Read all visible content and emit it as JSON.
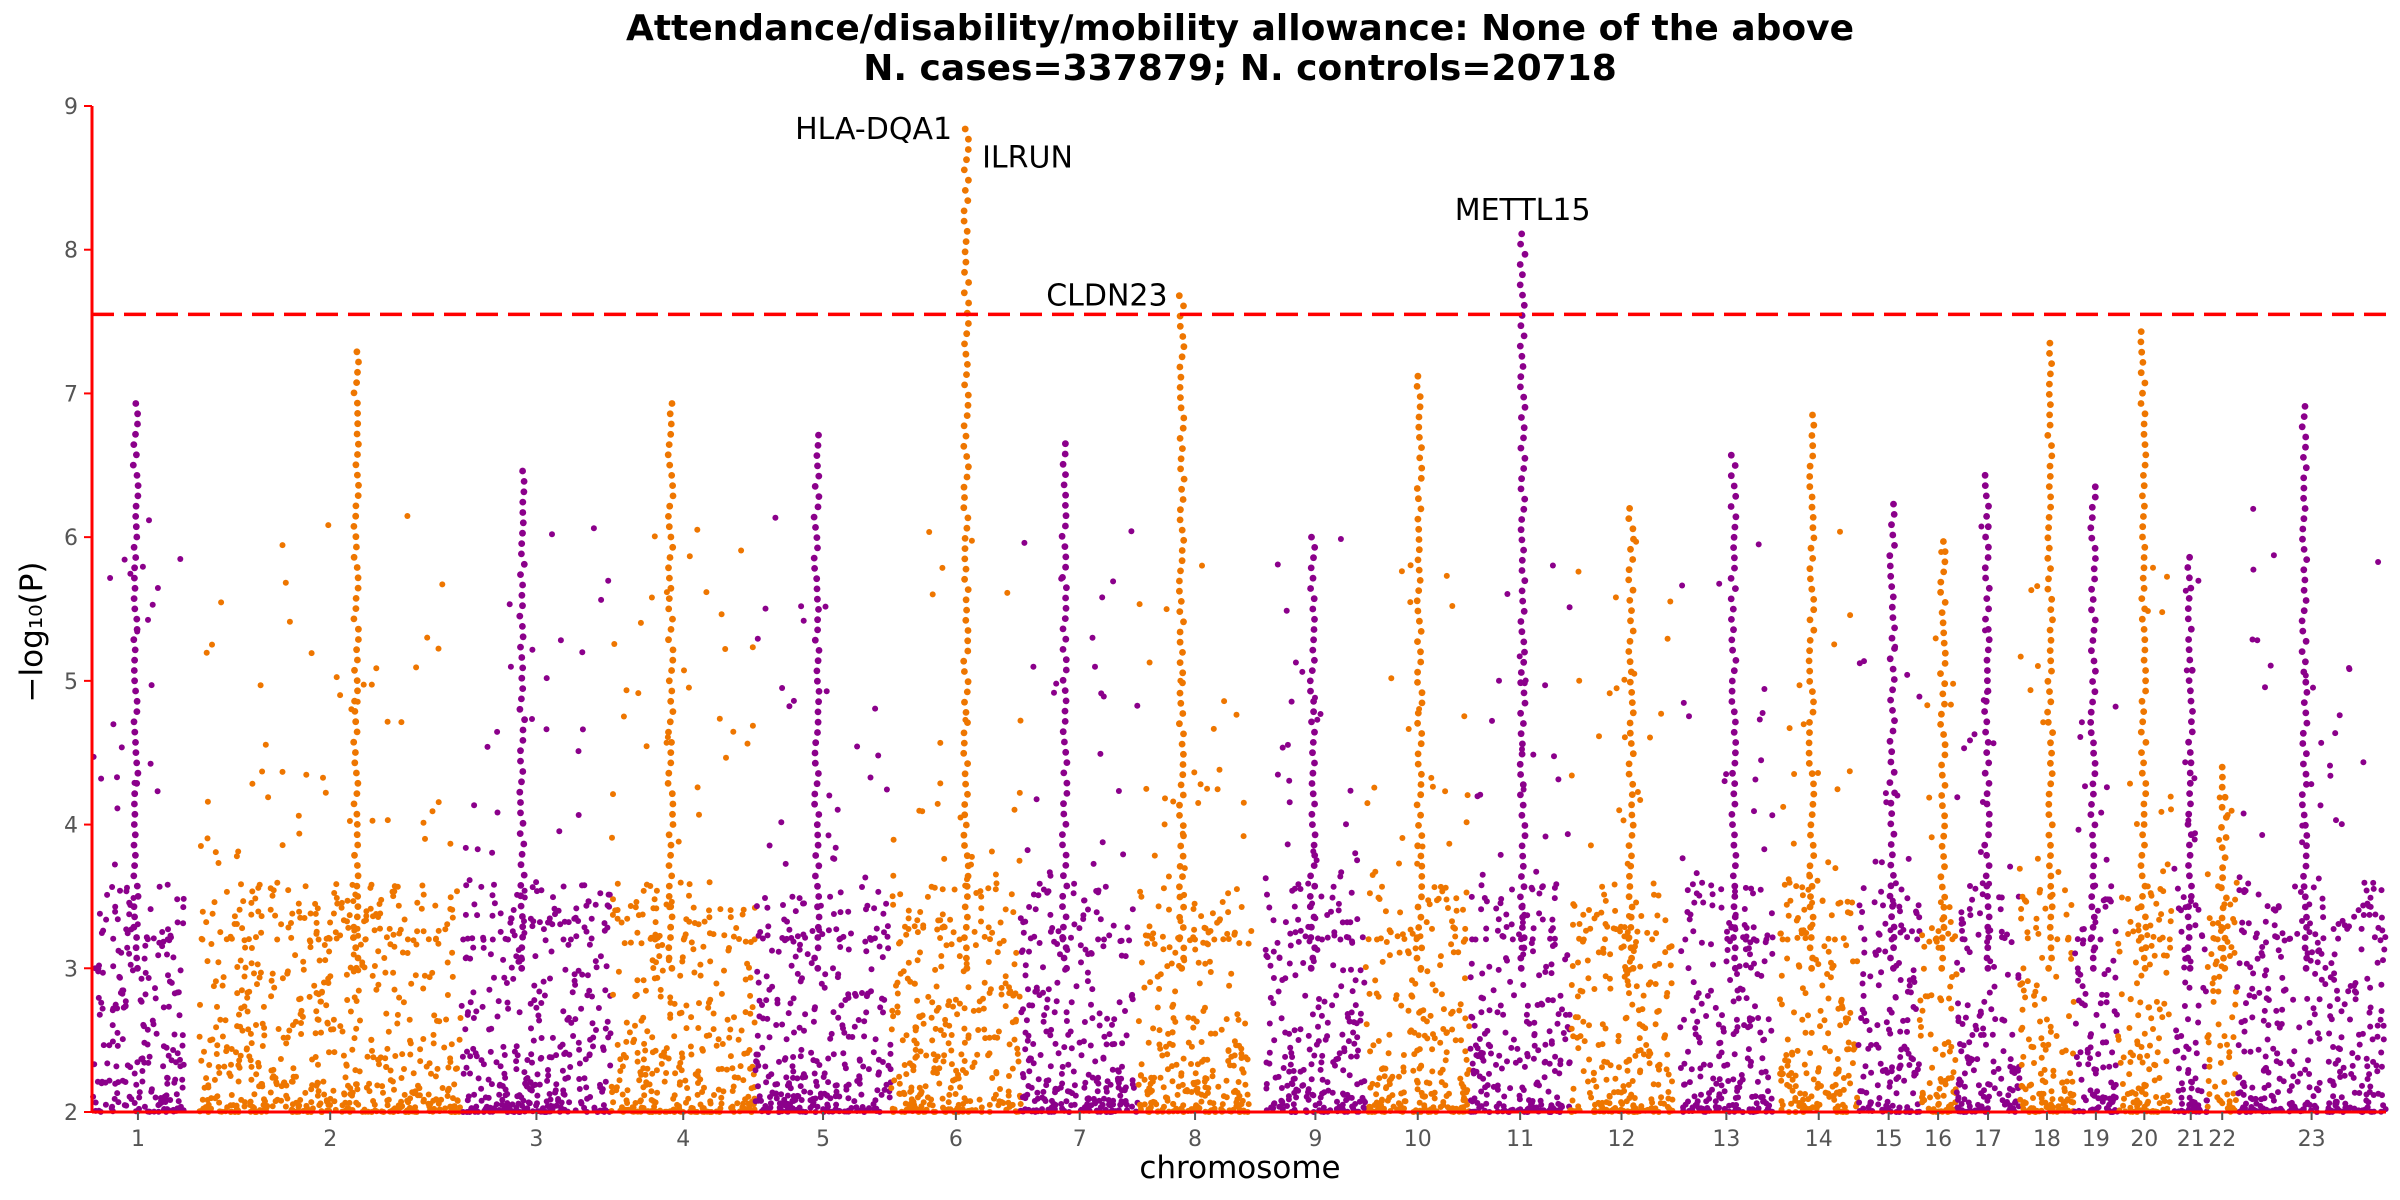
{
  "chart_data": {
    "type": "scatter",
    "subtype": "manhattan",
    "title_line1": "Attendance/disability/mobility allowance: None of the above",
    "title_line2": "N. cases=337879; N. controls=20718",
    "xlabel": "chromosome",
    "ylabel": "−log₁₀(P)",
    "ylim": [
      2,
      9
    ],
    "yticks": [
      2,
      3,
      4,
      5,
      6,
      7,
      8,
      9
    ],
    "significance_threshold": 7.55,
    "colors": {
      "odd": "#8B008B",
      "even": "#EE7600",
      "threshold": "#FF0000",
      "axis": "#FF0000"
    },
    "chromosomes": [
      {
        "label": "1",
        "start": 0,
        "end": 92,
        "peak": 6.93
      },
      {
        "label": "2",
        "start": 107,
        "end": 370,
        "peak": 7.29
      },
      {
        "label": "3",
        "start": 370,
        "end": 520,
        "peak": 6.46
      },
      {
        "label": "4",
        "start": 520,
        "end": 664,
        "peak": 6.93
      },
      {
        "label": "5",
        "start": 664,
        "end": 800,
        "peak": 6.71
      },
      {
        "label": "6",
        "start": 800,
        "end": 930,
        "peak": 8.84
      },
      {
        "label": "7",
        "start": 930,
        "end": 1048,
        "peak": 6.65
      },
      {
        "label": "8",
        "start": 1048,
        "end": 1161,
        "peak": 7.68
      },
      {
        "label": "9",
        "start": 1175,
        "end": 1275,
        "peak": 6.0
      },
      {
        "label": "10",
        "start": 1275,
        "end": 1380,
        "peak": 7.12
      },
      {
        "label": "11",
        "start": 1380,
        "end": 1480,
        "peak": 8.11
      },
      {
        "label": "12",
        "start": 1480,
        "end": 1583,
        "peak": 6.2
      },
      {
        "label": "13",
        "start": 1590,
        "end": 1683,
        "peak": 6.57
      },
      {
        "label": "14",
        "start": 1690,
        "end": 1768,
        "peak": 6.85
      },
      {
        "label": "15",
        "start": 1768,
        "end": 1830,
        "peak": 6.23
      },
      {
        "label": "16",
        "start": 1830,
        "end": 1867,
        "peak": 5.97
      },
      {
        "label": "17",
        "start": 1867,
        "end": 1930,
        "peak": 6.43
      },
      {
        "label": "18",
        "start": 1930,
        "end": 1985,
        "peak": 7.35
      },
      {
        "label": "19",
        "start": 1985,
        "end": 2028,
        "peak": 6.35
      },
      {
        "label": "20",
        "start": 2028,
        "end": 2082,
        "peak": 7.43
      },
      {
        "label": "21",
        "start": 2085,
        "end": 2118,
        "peak": 5.86
      },
      {
        "label": "22",
        "start": 2118,
        "end": 2148,
        "peak": 4.4
      },
      {
        "label": "23",
        "start": 2148,
        "end": 2297,
        "peak": 6.91
      }
    ],
    "annotations": [
      {
        "gene": "HLA-DQA1",
        "chrom": "6",
        "y": 8.84,
        "side": "left"
      },
      {
        "gene": "ILRUN",
        "chrom": "6",
        "y": 8.64,
        "side": "right"
      },
      {
        "gene": "CLDN23",
        "chrom": "8",
        "y": 7.68,
        "side": "left"
      },
      {
        "gene": "METTL15",
        "chrom": "11",
        "y": 8.11,
        "side": "above"
      }
    ]
  }
}
